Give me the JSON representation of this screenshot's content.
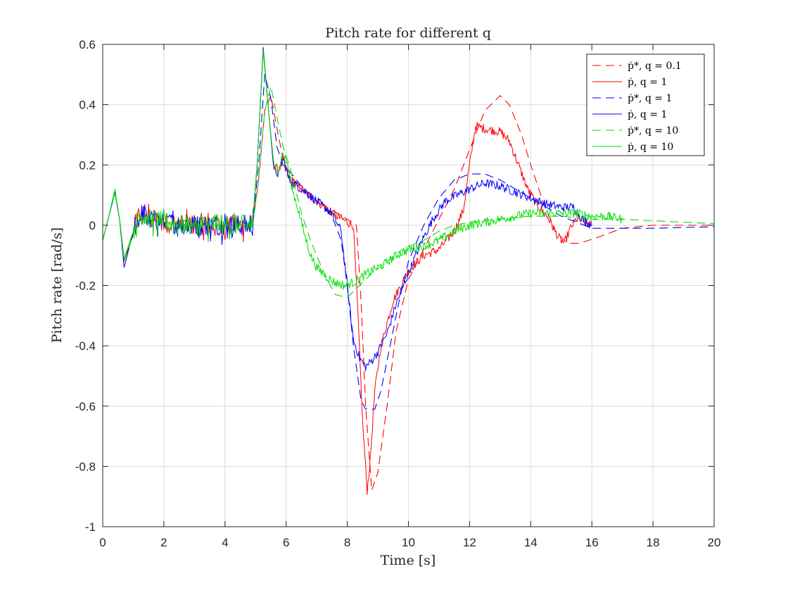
{
  "chart_data": {
    "type": "line",
    "title": "Pitch rate for different q",
    "xlabel": "Time [s]",
    "ylabel": "Pitch rate [rad/s]",
    "xlim": [
      0,
      20
    ],
    "ylim": [
      -1,
      0.6
    ],
    "xticks": [
      0,
      2,
      4,
      6,
      8,
      10,
      12,
      14,
      16,
      18,
      20
    ],
    "yticks": [
      -1,
      -0.8,
      -0.6,
      -0.4,
      -0.2,
      0,
      0.2,
      0.4,
      0.6
    ],
    "xtick_labels": [
      "0",
      "2",
      "4",
      "6",
      "8",
      "10",
      "12",
      "14",
      "16",
      "18",
      "20"
    ],
    "ytick_labels": [
      "-1",
      "-0.8",
      "-0.6",
      "-0.4",
      "-0.2",
      "0",
      "0.2",
      "0.4",
      "0.6"
    ],
    "grid": true,
    "legend_position": "top-right",
    "series": [
      {
        "name": "ṗ*, q = 0.1",
        "color": "#ff0000",
        "style": "dashed",
        "noise": 0,
        "points": [
          [
            0,
            -0.05
          ],
          [
            0.2,
            0.03
          ],
          [
            0.4,
            0.11
          ],
          [
            0.55,
            0.02
          ],
          [
            0.7,
            -0.11
          ],
          [
            0.9,
            -0.06
          ],
          [
            1.1,
            0.0
          ],
          [
            1.3,
            0.04
          ],
          [
            1.5,
            0.02
          ],
          [
            2.0,
            0.01
          ],
          [
            3.0,
            0.0
          ],
          [
            4.0,
            0.0
          ],
          [
            4.9,
            0.0
          ],
          [
            5.1,
            0.15
          ],
          [
            5.3,
            0.38
          ],
          [
            5.5,
            0.43
          ],
          [
            5.7,
            0.32
          ],
          [
            5.9,
            0.22
          ],
          [
            6.1,
            0.17
          ],
          [
            6.5,
            0.12
          ],
          [
            7.0,
            0.08
          ],
          [
            7.5,
            0.05
          ],
          [
            8.0,
            0.02
          ],
          [
            8.3,
            0.0
          ],
          [
            8.45,
            -0.25
          ],
          [
            8.6,
            -0.6
          ],
          [
            8.8,
            -0.88
          ],
          [
            9.0,
            -0.82
          ],
          [
            9.3,
            -0.6
          ],
          [
            9.6,
            -0.35
          ],
          [
            10.0,
            -0.18
          ],
          [
            10.5,
            -0.08
          ],
          [
            11.0,
            0.02
          ],
          [
            11.5,
            0.12
          ],
          [
            12.0,
            0.25
          ],
          [
            12.5,
            0.38
          ],
          [
            13.0,
            0.43
          ],
          [
            13.3,
            0.4
          ],
          [
            13.7,
            0.3
          ],
          [
            14.0,
            0.2
          ],
          [
            14.4,
            0.08
          ],
          [
            14.8,
            -0.02
          ],
          [
            15.2,
            -0.06
          ],
          [
            15.6,
            -0.06
          ],
          [
            16.2,
            -0.04
          ],
          [
            17.0,
            -0.01
          ],
          [
            18.0,
            0.0
          ],
          [
            20.0,
            0.0
          ]
        ]
      },
      {
        "name": "ṗ, q = 1",
        "color": "#ff0000",
        "style": "solid",
        "noise": 0.015,
        "points": [
          [
            0,
            -0.05
          ],
          [
            0.2,
            0.03
          ],
          [
            0.4,
            0.11
          ],
          [
            0.55,
            0.02
          ],
          [
            0.7,
            -0.12
          ],
          [
            0.9,
            -0.06
          ],
          [
            1.1,
            0.01
          ],
          [
            1.3,
            0.04
          ],
          [
            1.5,
            0.02
          ],
          [
            2.0,
            0.01
          ],
          [
            3.0,
            0.0
          ],
          [
            4.0,
            0.0
          ],
          [
            4.9,
            0.0
          ],
          [
            5.05,
            0.2
          ],
          [
            5.25,
            0.58
          ],
          [
            5.45,
            0.35
          ],
          [
            5.6,
            0.2
          ],
          [
            5.75,
            0.18
          ],
          [
            5.9,
            0.22
          ],
          [
            6.1,
            0.15
          ],
          [
            6.5,
            0.12
          ],
          [
            7.0,
            0.08
          ],
          [
            7.5,
            0.04
          ],
          [
            8.0,
            0.01
          ],
          [
            8.2,
            0.0
          ],
          [
            8.35,
            -0.3
          ],
          [
            8.5,
            -0.65
          ],
          [
            8.65,
            -0.88
          ],
          [
            8.75,
            -0.78
          ],
          [
            8.9,
            -0.55
          ],
          [
            9.1,
            -0.4
          ],
          [
            9.5,
            -0.25
          ],
          [
            10.0,
            -0.15
          ],
          [
            10.5,
            -0.1
          ],
          [
            11.0,
            -0.08
          ],
          [
            11.5,
            -0.02
          ],
          [
            11.8,
            0.05
          ],
          [
            12.0,
            0.2
          ],
          [
            12.2,
            0.33
          ],
          [
            12.5,
            0.32
          ],
          [
            13.0,
            0.31
          ],
          [
            13.3,
            0.28
          ],
          [
            13.6,
            0.2
          ],
          [
            13.9,
            0.12
          ],
          [
            14.2,
            0.07
          ],
          [
            14.6,
            0.02
          ],
          [
            14.9,
            -0.04
          ],
          [
            15.1,
            -0.06
          ],
          [
            15.3,
            -0.01
          ],
          [
            15.5,
            0.02
          ],
          [
            15.8,
            0.01
          ],
          [
            16.0,
            0.0
          ]
        ]
      },
      {
        "name": "ṗ*, q = 1",
        "color": "#0000ff",
        "style": "dashed",
        "noise": 0,
        "points": [
          [
            0,
            -0.05
          ],
          [
            0.2,
            0.03
          ],
          [
            0.4,
            0.11
          ],
          [
            0.55,
            0.02
          ],
          [
            0.7,
            -0.12
          ],
          [
            0.9,
            -0.06
          ],
          [
            1.1,
            0.0
          ],
          [
            1.3,
            0.04
          ],
          [
            1.5,
            0.02
          ],
          [
            2.0,
            0.01
          ],
          [
            3.0,
            0.0
          ],
          [
            4.0,
            0.0
          ],
          [
            4.9,
            0.0
          ],
          [
            5.1,
            0.2
          ],
          [
            5.3,
            0.5
          ],
          [
            5.5,
            0.42
          ],
          [
            5.7,
            0.26
          ],
          [
            5.9,
            0.2
          ],
          [
            6.1,
            0.18
          ],
          [
            6.5,
            0.13
          ],
          [
            7.0,
            0.08
          ],
          [
            7.5,
            0.03
          ],
          [
            7.8,
            -0.05
          ],
          [
            8.0,
            -0.2
          ],
          [
            8.2,
            -0.4
          ],
          [
            8.45,
            -0.58
          ],
          [
            8.6,
            -0.61
          ],
          [
            8.9,
            -0.61
          ],
          [
            9.1,
            -0.55
          ],
          [
            9.4,
            -0.4
          ],
          [
            9.7,
            -0.25
          ],
          [
            10.0,
            -0.12
          ],
          [
            10.5,
            0.0
          ],
          [
            11.0,
            0.09
          ],
          [
            11.5,
            0.15
          ],
          [
            12.0,
            0.17
          ],
          [
            12.5,
            0.17
          ],
          [
            13.0,
            0.15
          ],
          [
            13.5,
            0.12
          ],
          [
            14.0,
            0.09
          ],
          [
            14.5,
            0.06
          ],
          [
            15.0,
            0.03
          ],
          [
            15.5,
            0.01
          ],
          [
            16.0,
            -0.01
          ],
          [
            17.0,
            -0.01
          ],
          [
            18.0,
            -0.01
          ],
          [
            20.0,
            -0.005
          ]
        ]
      },
      {
        "name": "ṗ, q = 1",
        "color": "#0000ff",
        "style": "solid",
        "noise": 0.015,
        "points": [
          [
            0,
            -0.05
          ],
          [
            0.2,
            0.03
          ],
          [
            0.4,
            0.11
          ],
          [
            0.55,
            0.02
          ],
          [
            0.7,
            -0.14
          ],
          [
            0.9,
            -0.06
          ],
          [
            1.1,
            0.01
          ],
          [
            1.3,
            0.04
          ],
          [
            1.5,
            0.02
          ],
          [
            2.0,
            0.01
          ],
          [
            3.0,
            0.0
          ],
          [
            4.0,
            0.0
          ],
          [
            4.9,
            0.0
          ],
          [
            5.05,
            0.2
          ],
          [
            5.25,
            0.59
          ],
          [
            5.45,
            0.35
          ],
          [
            5.6,
            0.18
          ],
          [
            5.75,
            0.17
          ],
          [
            5.9,
            0.22
          ],
          [
            6.1,
            0.15
          ],
          [
            6.5,
            0.12
          ],
          [
            7.0,
            0.08
          ],
          [
            7.5,
            0.04
          ],
          [
            7.8,
            -0.02
          ],
          [
            8.0,
            -0.2
          ],
          [
            8.2,
            -0.38
          ],
          [
            8.4,
            -0.44
          ],
          [
            8.6,
            -0.47
          ],
          [
            8.8,
            -0.45
          ],
          [
            9.0,
            -0.42
          ],
          [
            9.3,
            -0.36
          ],
          [
            9.6,
            -0.26
          ],
          [
            10.0,
            -0.16
          ],
          [
            10.4,
            -0.06
          ],
          [
            10.8,
            0.02
          ],
          [
            11.2,
            0.08
          ],
          [
            11.6,
            0.1
          ],
          [
            12.0,
            0.12
          ],
          [
            12.5,
            0.14
          ],
          [
            13.0,
            0.13
          ],
          [
            13.5,
            0.11
          ],
          [
            14.0,
            0.09
          ],
          [
            14.5,
            0.07
          ],
          [
            15.0,
            0.06
          ],
          [
            15.4,
            0.06
          ],
          [
            15.7,
            0.02
          ],
          [
            16.0,
            0.0
          ]
        ]
      },
      {
        "name": "ṗ*, q = 10",
        "color": "#00e000",
        "style": "dashed",
        "noise": 0,
        "points": [
          [
            0,
            -0.05
          ],
          [
            0.2,
            0.03
          ],
          [
            0.4,
            0.11
          ],
          [
            0.55,
            0.02
          ],
          [
            0.7,
            -0.12
          ],
          [
            0.9,
            -0.06
          ],
          [
            1.1,
            0.0
          ],
          [
            1.3,
            0.04
          ],
          [
            1.5,
            0.02
          ],
          [
            2.0,
            0.01
          ],
          [
            3.0,
            0.0
          ],
          [
            4.0,
            0.0
          ],
          [
            4.9,
            0.0
          ],
          [
            5.1,
            0.15
          ],
          [
            5.3,
            0.38
          ],
          [
            5.5,
            0.46
          ],
          [
            5.7,
            0.36
          ],
          [
            5.9,
            0.26
          ],
          [
            6.1,
            0.2
          ],
          [
            6.3,
            0.12
          ],
          [
            6.5,
            0.04
          ],
          [
            6.8,
            -0.05
          ],
          [
            7.2,
            -0.15
          ],
          [
            7.6,
            -0.23
          ],
          [
            8.0,
            -0.24
          ],
          [
            8.4,
            -0.2
          ],
          [
            8.8,
            -0.16
          ],
          [
            9.3,
            -0.12
          ],
          [
            9.8,
            -0.08
          ],
          [
            10.5,
            -0.05
          ],
          [
            11.0,
            -0.02
          ],
          [
            11.5,
            0.0
          ],
          [
            12.0,
            0.01
          ],
          [
            13.0,
            0.02
          ],
          [
            14.0,
            0.03
          ],
          [
            15.0,
            0.03
          ],
          [
            16.0,
            0.02
          ],
          [
            17.0,
            0.02
          ],
          [
            18.0,
            0.015
          ],
          [
            19.0,
            0.01
          ],
          [
            20.0,
            0.005
          ]
        ]
      },
      {
        "name": "ṗ, q = 10",
        "color": "#00e000",
        "style": "solid",
        "noise": 0.015,
        "points": [
          [
            0,
            -0.05
          ],
          [
            0.2,
            0.03
          ],
          [
            0.4,
            0.12
          ],
          [
            0.55,
            0.02
          ],
          [
            0.7,
            -0.11
          ],
          [
            0.9,
            -0.05
          ],
          [
            1.1,
            0.01
          ],
          [
            1.3,
            0.04
          ],
          [
            1.5,
            0.02
          ],
          [
            2.0,
            0.01
          ],
          [
            3.0,
            0.0
          ],
          [
            4.0,
            0.0
          ],
          [
            4.9,
            0.0
          ],
          [
            5.05,
            0.2
          ],
          [
            5.25,
            0.58
          ],
          [
            5.45,
            0.35
          ],
          [
            5.6,
            0.2
          ],
          [
            5.75,
            0.18
          ],
          [
            5.9,
            0.24
          ],
          [
            6.05,
            0.2
          ],
          [
            6.2,
            0.12
          ],
          [
            6.4,
            0.05
          ],
          [
            6.6,
            -0.03
          ],
          [
            6.8,
            -0.1
          ],
          [
            7.0,
            -0.14
          ],
          [
            7.3,
            -0.17
          ],
          [
            7.6,
            -0.19
          ],
          [
            7.9,
            -0.2
          ],
          [
            8.2,
            -0.19
          ],
          [
            8.5,
            -0.17
          ],
          [
            8.8,
            -0.15
          ],
          [
            9.2,
            -0.13
          ],
          [
            9.6,
            -0.1
          ],
          [
            10.0,
            -0.08
          ],
          [
            10.5,
            -0.07
          ],
          [
            11.0,
            -0.05
          ],
          [
            11.5,
            -0.02
          ],
          [
            12.0,
            0.0
          ],
          [
            12.5,
            0.01
          ],
          [
            13.0,
            0.02
          ],
          [
            13.5,
            0.03
          ],
          [
            14.0,
            0.04
          ],
          [
            14.5,
            0.04
          ],
          [
            15.0,
            0.04
          ],
          [
            15.5,
            0.04
          ],
          [
            16.0,
            0.03
          ],
          [
            16.5,
            0.03
          ],
          [
            17.0,
            0.02
          ]
        ]
      }
    ]
  }
}
